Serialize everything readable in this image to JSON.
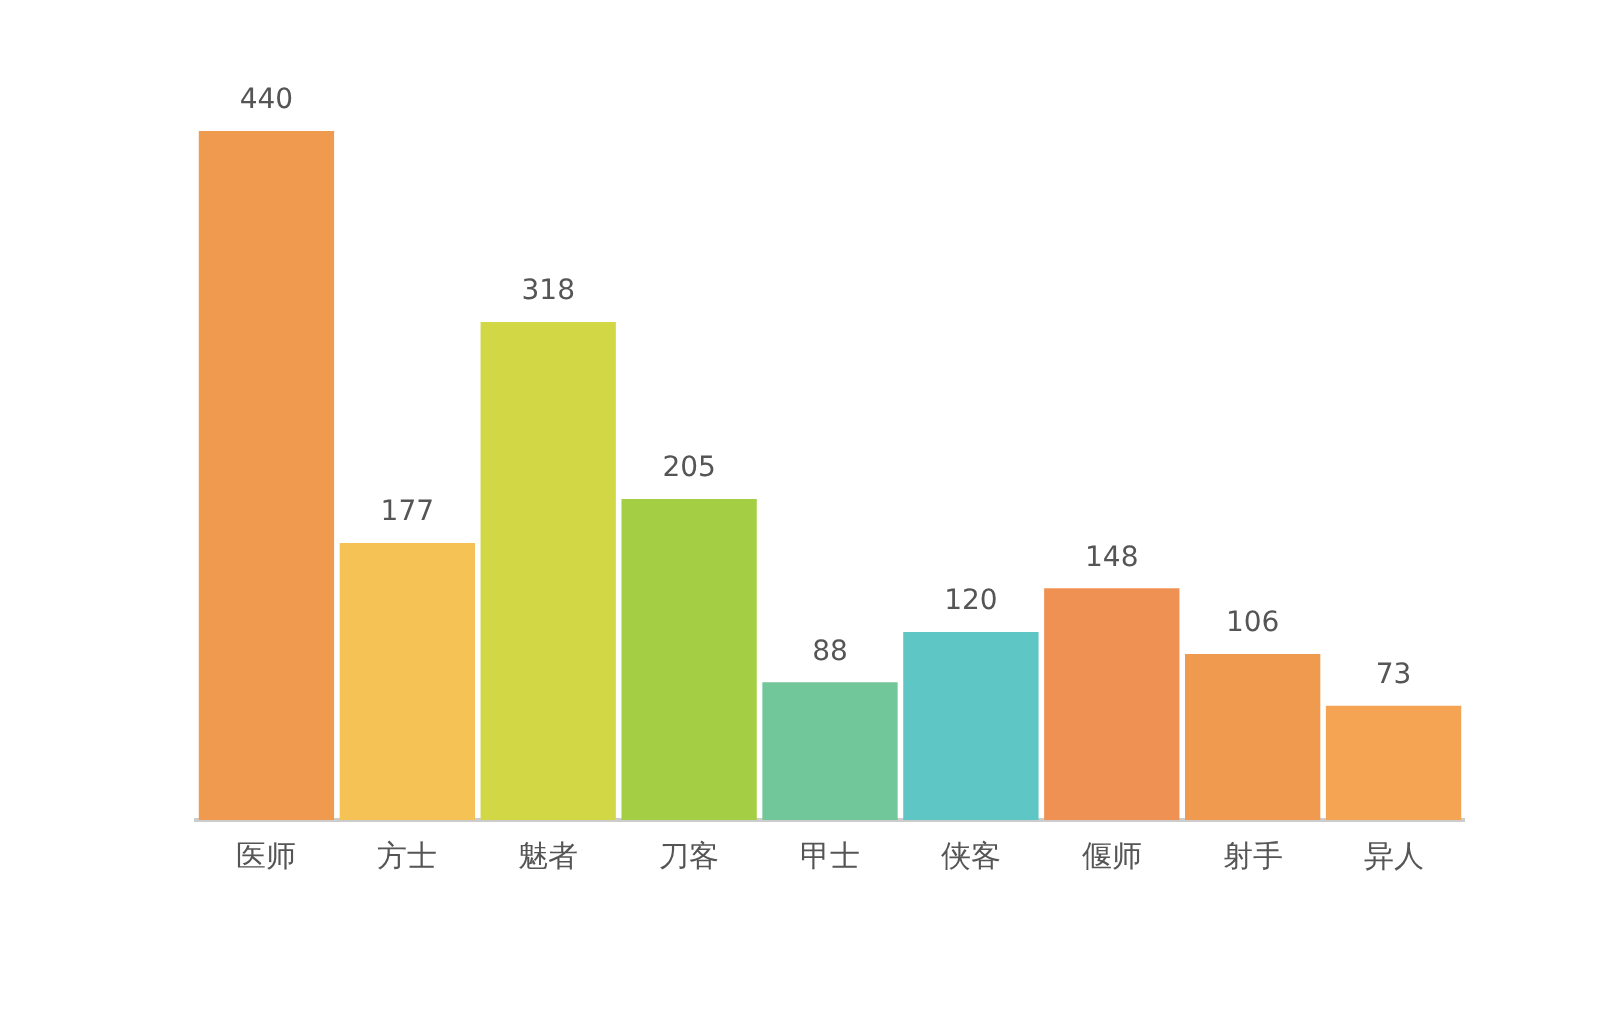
{
  "chart_data": {
    "type": "bar",
    "categories": [
      "医师",
      "方士",
      "魅者",
      "刀客",
      "甲士",
      "侠客",
      "偃师",
      "射手",
      "异人"
    ],
    "values": [
      440,
      177,
      318,
      205,
      88,
      120,
      148,
      106,
      73
    ],
    "colors": [
      "#f09a50",
      "#f5c255",
      "#d2d845",
      "#a4cf45",
      "#72c79a",
      "#5ec6c4",
      "#ef9152",
      "#f09a50",
      "#f4a452"
    ],
    "data_labels": true,
    "grid": false,
    "legend": false
  }
}
